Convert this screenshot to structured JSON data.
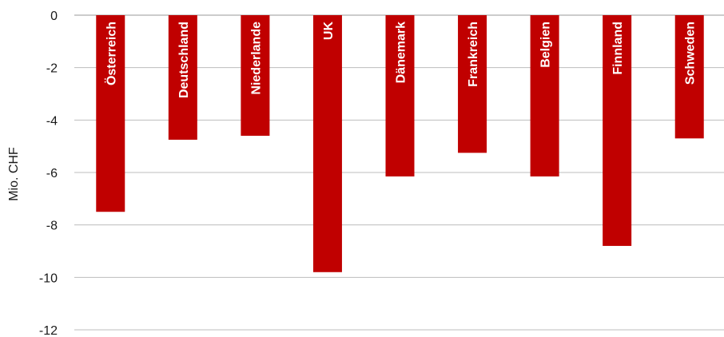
{
  "chart_data": {
    "type": "bar",
    "title": "",
    "xlabel": "",
    "ylabel": "Mio. CHF",
    "ylim": [
      -12,
      0
    ],
    "yticks": [
      0,
      -2,
      -4,
      -6,
      -8,
      -10,
      -12
    ],
    "grid": true,
    "legend": "none",
    "bar_color": "#c00000",
    "categories": [
      "Österreich",
      "Deutschland",
      "Niederlande",
      "UK",
      "Dänemark",
      "Frankreich",
      "Belgien",
      "Finnland",
      "Schweden"
    ],
    "values": [
      -7.5,
      -4.75,
      -4.6,
      -9.8,
      -6.15,
      -5.25,
      -6.15,
      -8.8,
      -4.7
    ]
  }
}
